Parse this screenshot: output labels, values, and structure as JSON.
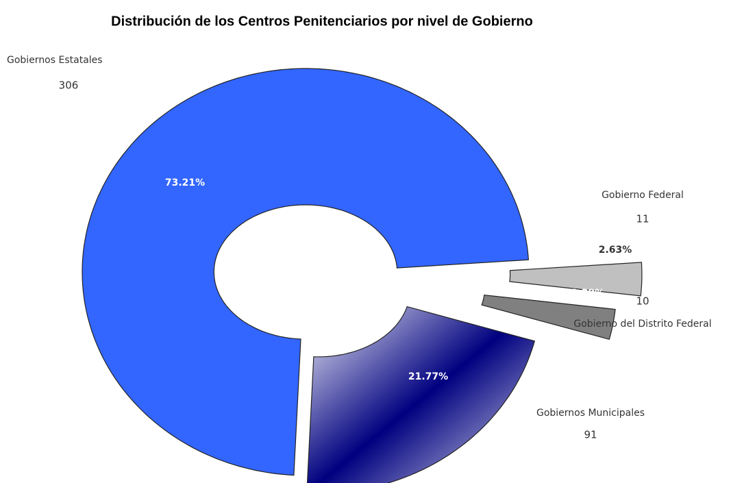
{
  "chart_data": {
    "type": "donut",
    "title": "Distribución de los Centros Penitenciarios por nivel de Gobierno",
    "categories": [
      "Gobiernos Estatales",
      "Gobierno Federal",
      "Gobierno del Distrito Federal",
      "Gobiernos Municipales"
    ],
    "values": [
      306,
      11,
      10,
      91
    ],
    "percentages": [
      73.21,
      2.63,
      2.39,
      21.77
    ],
    "percentage_labels": [
      "73.21%",
      "2.63%",
      "2.39%",
      "21.77%"
    ],
    "colors": [
      "#3366ff",
      "#c0c0c0",
      "#808080",
      "#000080"
    ]
  }
}
